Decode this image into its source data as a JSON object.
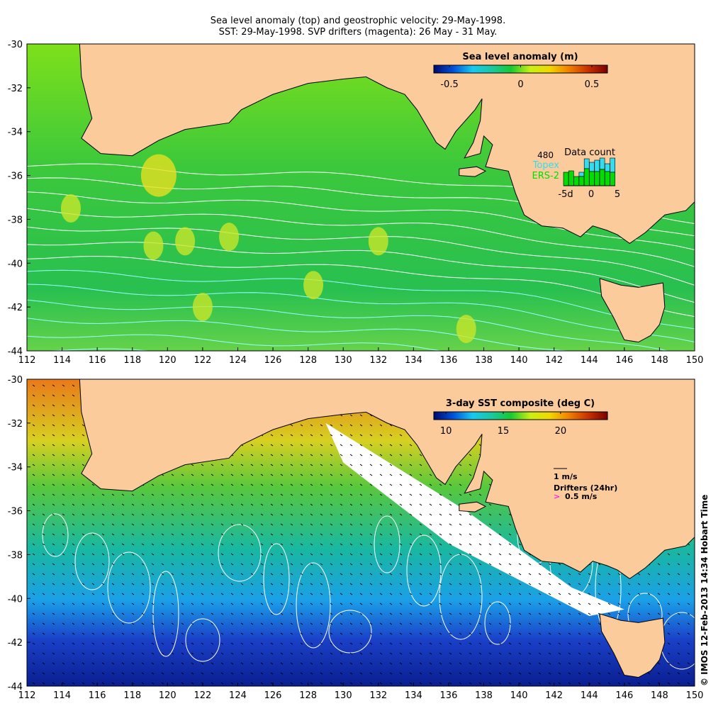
{
  "title": {
    "line1": "Sea level anomaly (top) and geostrophic velocity: 29-May-1998.",
    "line2": "SST: 29-May-1998. SVP drifters (magenta): 26 May - 31 May."
  },
  "axes": {
    "lon_ticks": [
      "112",
      "114",
      "116",
      "118",
      "120",
      "122",
      "124",
      "126",
      "128",
      "130",
      "132",
      "134",
      "136",
      "138",
      "140",
      "142",
      "144",
      "146",
      "148",
      "150"
    ],
    "lat_ticks": [
      "-30",
      "-32",
      "-34",
      "-36",
      "-38",
      "-40",
      "-42",
      "-44"
    ]
  },
  "top_panel": {
    "legend_title": "Sea level anomaly (m)",
    "legend_ticks": [
      "-0.5",
      "0",
      "0.5"
    ],
    "data_count": {
      "title": "Data count",
      "max": "480",
      "series1": "Topex",
      "series2": "ERS-2",
      "x_ticks": [
        "-5d",
        "0",
        "5"
      ],
      "topex_color": "#33ddee",
      "ers2_color": "#00dd00"
    }
  },
  "bottom_panel": {
    "legend_title": "3-day SST composite (deg C)",
    "legend_ticks": [
      "10",
      "15",
      "20"
    ],
    "velocity_scale": "1 m/s",
    "drifters_label": "Drifters (24hr)",
    "drifter_scale": "0.5 m/s",
    "drifter_color": "#ff00ff"
  },
  "colors": {
    "land": "#fccb9c",
    "contour": "#ffffff"
  },
  "credit": "© IMOS 12-Feb-2013 14:34 Hobart Time"
}
